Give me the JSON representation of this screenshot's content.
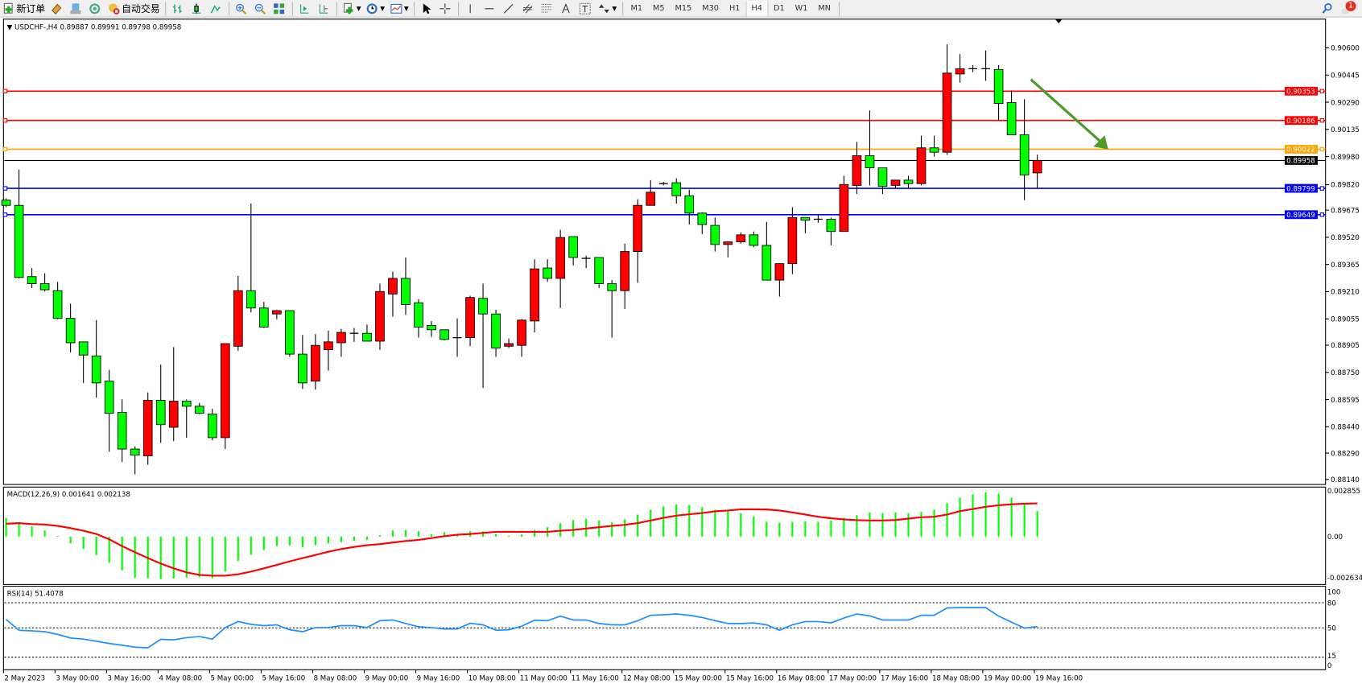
{
  "toolbar": {
    "new_order": "新订单",
    "auto_trading": "自动交易",
    "timeframes": [
      "M1",
      "M5",
      "M15",
      "M30",
      "H1",
      "H4",
      "D1",
      "W1",
      "MN"
    ],
    "active_timeframe": "H4",
    "notification_count": "1",
    "icons": [
      "new-order-icon",
      "market-watch-icon",
      "data-window-icon",
      "signals-icon",
      "auto-trading-icon",
      "bar-chart-icon",
      "candlestick-icon",
      "line-chart-icon",
      "zoom-in-icon",
      "zoom-out-icon",
      "tile-windows-icon",
      "auto-scroll-icon",
      "chart-shift-icon",
      "indicators-icon",
      "periods-icon",
      "templates-icon",
      "cursor-icon",
      "crosshair-icon",
      "vertical-line-icon",
      "horizontal-line-icon",
      "trendline-icon",
      "equidistant-channel-icon",
      "fibonacci-icon",
      "text-icon",
      "text-label-icon",
      "arrows-icon",
      "search-icon",
      "notification-icon"
    ]
  },
  "chart": {
    "header": "USDCHF-,H4  0.89887 0.89991 0.89798 0.89958",
    "colors": {
      "bull": "#ff0000",
      "bear": "#00ff00",
      "bid": "#000000",
      "arrow": "#4f9a2a"
    },
    "price_ticks": [
      "0.90600",
      "0.90445",
      "0.90290",
      "0.90135",
      "0.89980",
      "0.89820",
      "0.89675",
      "0.89520",
      "0.89365",
      "0.89210",
      "0.89055",
      "0.88905",
      "0.88750",
      "0.88595",
      "0.88440",
      "0.88290",
      "0.88140"
    ],
    "levels": [
      {
        "price": "0.90353",
        "color": "#ff0000"
      },
      {
        "price": "0.90186",
        "color": "#ff0000"
      },
      {
        "price": "0.90022",
        "color": "#ffa500"
      },
      {
        "price": "0.89958",
        "color": "#000000"
      },
      {
        "price": "0.89799",
        "color": "#0000ff"
      },
      {
        "price": "0.89649",
        "color": "#0000ff"
      }
    ],
    "arrow": {
      "from_price": 0.9042,
      "to_price": 0.90022,
      "from_bar": 79.5,
      "to_bar": 85.5
    },
    "time_labels": [
      "2 May 2023",
      "3 May 00:00",
      "3 May 16:00",
      "4 May 08:00",
      "5 May 00:00",
      "5 May 16:00",
      "8 May 08:00",
      "9 May 00:00",
      "9 May 16:00",
      "10 May 08:00",
      "11 May 00:00",
      "11 May 16:00",
      "12 May 08:00",
      "15 May 00:00",
      "15 May 16:00",
      "16 May 08:00",
      "17 May 00:00",
      "17 May 16:00",
      "18 May 08:00",
      "19 May 00:00",
      "19 May 16:00"
    ]
  },
  "chart_data": [
    {
      "type": "candlestick",
      "symbol": "USDCHF-",
      "timeframe": "H4",
      "ylim": [
        0.8814,
        0.906
      ],
      "ohlc": [
        [
          0.89732,
          0.89742,
          0.89692,
          0.89702
        ],
        [
          0.89702,
          0.89906,
          0.89286,
          0.89291
        ],
        [
          0.89296,
          0.89345,
          0.89231,
          0.89256
        ],
        [
          0.89256,
          0.89315,
          0.89211,
          0.89221
        ],
        [
          0.89216,
          0.89266,
          0.89053,
          0.89058
        ],
        [
          0.89058,
          0.89142,
          0.88864,
          0.88919
        ],
        [
          0.88924,
          0.88924,
          0.8869,
          0.88849
        ],
        [
          0.88844,
          0.89048,
          0.88606,
          0.8869
        ],
        [
          0.887,
          0.88765,
          0.88298,
          0.88517
        ],
        [
          0.88522,
          0.88596,
          0.88239,
          0.88313
        ],
        [
          0.88313,
          0.88328,
          0.88169,
          0.88279
        ],
        [
          0.88274,
          0.88636,
          0.88224,
          0.88591
        ],
        [
          0.88591,
          0.88795,
          0.88348,
          0.88452
        ],
        [
          0.88437,
          0.88894,
          0.88358,
          0.88586
        ],
        [
          0.88586,
          0.88596,
          0.88378,
          0.88557
        ],
        [
          0.88557,
          0.88576,
          0.88512,
          0.88517
        ],
        [
          0.88512,
          0.88542,
          0.88363,
          0.88378
        ],
        [
          0.88378,
          0.88914,
          0.88313,
          0.88914
        ],
        [
          0.88899,
          0.893,
          0.88874,
          0.89216
        ],
        [
          0.89216,
          0.89712,
          0.89092,
          0.89117
        ],
        [
          0.89117,
          0.89152,
          0.89003,
          0.89008
        ],
        [
          0.89083,
          0.89107,
          0.89053,
          0.89102
        ],
        [
          0.89102,
          0.89102,
          0.88839,
          0.88854
        ],
        [
          0.88854,
          0.88963,
          0.88656,
          0.8869
        ],
        [
          0.887,
          0.88968,
          0.88651,
          0.88904
        ],
        [
          0.88879,
          0.88988,
          0.8876,
          0.88924
        ],
        [
          0.88919,
          0.88998,
          0.88839,
          0.88978
        ],
        [
          0.88973,
          0.89003,
          0.88924,
          0.88973
        ],
        [
          0.88973,
          0.89023,
          0.88928,
          0.88928
        ],
        [
          0.88928,
          0.89256,
          0.88879,
          0.89211
        ],
        [
          0.89197,
          0.89325,
          0.89068,
          0.89286
        ],
        [
          0.89286,
          0.89405,
          0.89078,
          0.89137
        ],
        [
          0.89147,
          0.89167,
          0.88948,
          0.89008
        ],
        [
          0.89018,
          0.89043,
          0.88953,
          0.88993
        ],
        [
          0.88993,
          0.88993,
          0.88933,
          0.88938
        ],
        [
          0.88948,
          0.89058,
          0.88839,
          0.88948
        ],
        [
          0.88948,
          0.89187,
          0.88899,
          0.89177
        ],
        [
          0.89172,
          0.89256,
          0.88661,
          0.89083
        ],
        [
          0.89083,
          0.89107,
          0.88839,
          0.88889
        ],
        [
          0.88899,
          0.88943,
          0.88889,
          0.88914
        ],
        [
          0.88904,
          0.89053,
          0.88839,
          0.89048
        ],
        [
          0.89043,
          0.89395,
          0.88978,
          0.8934
        ],
        [
          0.89345,
          0.89395,
          0.89266,
          0.89286
        ],
        [
          0.89286,
          0.89563,
          0.89117,
          0.89519
        ],
        [
          0.89524,
          0.89524,
          0.8936,
          0.89405
        ],
        [
          0.894,
          0.89415,
          0.89345,
          0.89395
        ],
        [
          0.89405,
          0.89405,
          0.89231,
          0.89256
        ],
        [
          0.89256,
          0.89276,
          0.88948,
          0.89216
        ],
        [
          0.89216,
          0.89484,
          0.89112,
          0.89439
        ],
        [
          0.89439,
          0.89737,
          0.89261,
          0.89702
        ],
        [
          0.89702,
          0.89846,
          0.89702,
          0.89777
        ],
        [
          0.89826,
          0.89836,
          0.89816,
          0.89826
        ],
        [
          0.89831,
          0.89856,
          0.89712,
          0.89757
        ],
        [
          0.89757,
          0.89792,
          0.89593,
          0.89658
        ],
        [
          0.89658,
          0.89663,
          0.89538,
          0.89593
        ],
        [
          0.89588,
          0.89633,
          0.89439,
          0.89479
        ],
        [
          0.89479,
          0.89494,
          0.89405,
          0.89494
        ],
        [
          0.89494,
          0.89548,
          0.89484,
          0.89534
        ],
        [
          0.89534,
          0.89553,
          0.89464,
          0.89474
        ],
        [
          0.89474,
          0.89608,
          0.89276,
          0.89276
        ],
        [
          0.89276,
          0.8937,
          0.89182,
          0.8937
        ],
        [
          0.8937,
          0.89692,
          0.8931,
          0.89633
        ],
        [
          0.89633,
          0.89633,
          0.89543,
          0.89618
        ],
        [
          0.89623,
          0.89653,
          0.89603,
          0.89623
        ],
        [
          0.89623,
          0.89633,
          0.89474,
          0.89553
        ],
        [
          0.89553,
          0.89871,
          0.89553,
          0.89821
        ],
        [
          0.89816,
          0.90064,
          0.89767,
          0.89985
        ],
        [
          0.89985,
          0.90243,
          0.89816,
          0.89916
        ],
        [
          0.89916,
          0.89916,
          0.89767,
          0.89811
        ],
        [
          0.89816,
          0.89846,
          0.89801,
          0.89846
        ],
        [
          0.89846,
          0.89871,
          0.89801,
          0.89826
        ],
        [
          0.89826,
          0.90099,
          0.89816,
          0.9003
        ],
        [
          0.9003,
          0.90099,
          0.8998,
          0.90005
        ],
        [
          0.90005,
          0.9062,
          0.8999,
          0.90456
        ],
        [
          0.90451,
          0.90565,
          0.90402,
          0.90481
        ],
        [
          0.90481,
          0.90501,
          0.90461,
          0.90481
        ],
        [
          0.90481,
          0.90585,
          0.90412,
          0.90476
        ],
        [
          0.90476,
          0.90501,
          0.90188,
          0.90283
        ],
        [
          0.90288,
          0.90357,
          0.90104,
          0.90104
        ],
        [
          0.90104,
          0.90307,
          0.89732,
          0.89876
        ],
        [
          0.89887,
          0.89991,
          0.89798,
          0.89958
        ]
      ]
    },
    {
      "type": "bar",
      "title": "MACD(12,26,9) 0.001641 0.002138",
      "ylim": [
        -0.002634,
        0.002855
      ],
      "y_ticks": [
        "0.002855",
        "0.00",
        "-0.002634"
      ],
      "histogram": [
        0.00121,
        0.00087,
        0.00066,
        0.0004,
        5e-05,
        -0.00043,
        -0.00078,
        -0.00118,
        -0.00168,
        -0.00216,
        -0.00265,
        -0.00268,
        -0.00273,
        -0.0027,
        -0.00263,
        -0.0026,
        -0.00268,
        -0.00225,
        -0.00156,
        -0.00116,
        -0.00087,
        -0.00061,
        -0.00057,
        -0.00069,
        -0.00055,
        -0.00043,
        -0.00035,
        -0.00026,
        -0.00022,
        9e-05,
        0.0004,
        0.00043,
        0.00035,
        0.00017,
        0.00029,
        0.00017,
        0.00035,
        0.00035,
        0.00017,
        5e-05,
        0.00014,
        0.00043,
        0.00061,
        0.00087,
        0.00107,
        0.00116,
        0.00104,
        0.00092,
        0.00112,
        0.00142,
        0.00173,
        0.00194,
        0.00208,
        0.00204,
        0.0019,
        0.00173,
        0.00164,
        0.00151,
        0.0013,
        0.00095,
        0.0009,
        0.00095,
        0.00099,
        0.00095,
        0.00104,
        0.00121,
        0.00138,
        0.00156,
        0.00152,
        0.00156,
        0.00151,
        0.00159,
        0.00173,
        0.00216,
        0.00251,
        0.00273,
        0.00285,
        0.00277,
        0.00251,
        0.00216,
        0.00164
      ],
      "signal": [
        0.00083,
        0.00087,
        0.00081,
        0.00078,
        0.00069,
        0.00055,
        0.00038,
        0.00017,
        -0.00017,
        -0.00061,
        -0.001,
        -0.00138,
        -0.00173,
        -0.00204,
        -0.0023,
        -0.00246,
        -0.00251,
        -0.00251,
        -0.00242,
        -0.00225,
        -0.00204,
        -0.00182,
        -0.00159,
        -0.00138,
        -0.00118,
        -0.00097,
        -0.0008,
        -0.00066,
        -0.00055,
        -0.00048,
        -0.00038,
        -0.00028,
        -0.00021,
        -9e-05,
        3e-05,
        0.00012,
        0.00017,
        0.00024,
        0.00031,
        0.00031,
        0.00031,
        0.00031,
        0.00031,
        0.00038,
        0.00043,
        0.00052,
        0.00061,
        0.00069,
        0.00076,
        0.00087,
        0.00104,
        0.00121,
        0.00135,
        0.00144,
        0.00152,
        0.00163,
        0.00168,
        0.00176,
        0.00176,
        0.00175,
        0.00168,
        0.00156,
        0.00142,
        0.00128,
        0.00118,
        0.00111,
        0.00106,
        0.00104,
        0.00104,
        0.00107,
        0.00116,
        0.00125,
        0.00128,
        0.00142,
        0.00164,
        0.00178,
        0.00192,
        0.00202,
        0.00208,
        0.00212,
        0.00214
      ],
      "colors": {
        "histogram": "#00ff00",
        "signal": "#ff0000"
      }
    },
    {
      "type": "line",
      "title": "RSI(14) 51.4078",
      "ylim": [
        0,
        100
      ],
      "y_ticks": [
        "100",
        "80",
        "50",
        "15",
        "0"
      ],
      "levels": [
        80,
        50,
        15
      ],
      "values": [
        60.1,
        47.1,
        46.4,
        45.4,
        42.2,
        37.9,
        36.6,
        34.0,
        31.4,
        29.2,
        26.9,
        26.2,
        36.3,
        35.7,
        38.3,
        39.6,
        36.6,
        50.3,
        57.5,
        54.2,
        52.6,
        53.6,
        47.7,
        45.4,
        50.3,
        50.3,
        52.6,
        52.6,
        50.3,
        58.5,
        59.4,
        55.2,
        51.3,
        50.3,
        48.7,
        48.7,
        55.5,
        53.6,
        47.1,
        47.7,
        52.0,
        59.1,
        58.5,
        64.0,
        59.4,
        59.4,
        55.2,
        53.6,
        53.6,
        58.5,
        65.0,
        65.6,
        66.6,
        65.0,
        62.4,
        58.5,
        55.2,
        55.2,
        55.9,
        53.6,
        47.1,
        53.6,
        57.5,
        57.5,
        55.9,
        61.7,
        66.6,
        64.3,
        59.4,
        59.4,
        59.4,
        65.0,
        65.0,
        73.8,
        74.1,
        74.1,
        74.1,
        64.0,
        56.8,
        49.7,
        51.4078
      ],
      "color": "#1e90ff"
    }
  ]
}
